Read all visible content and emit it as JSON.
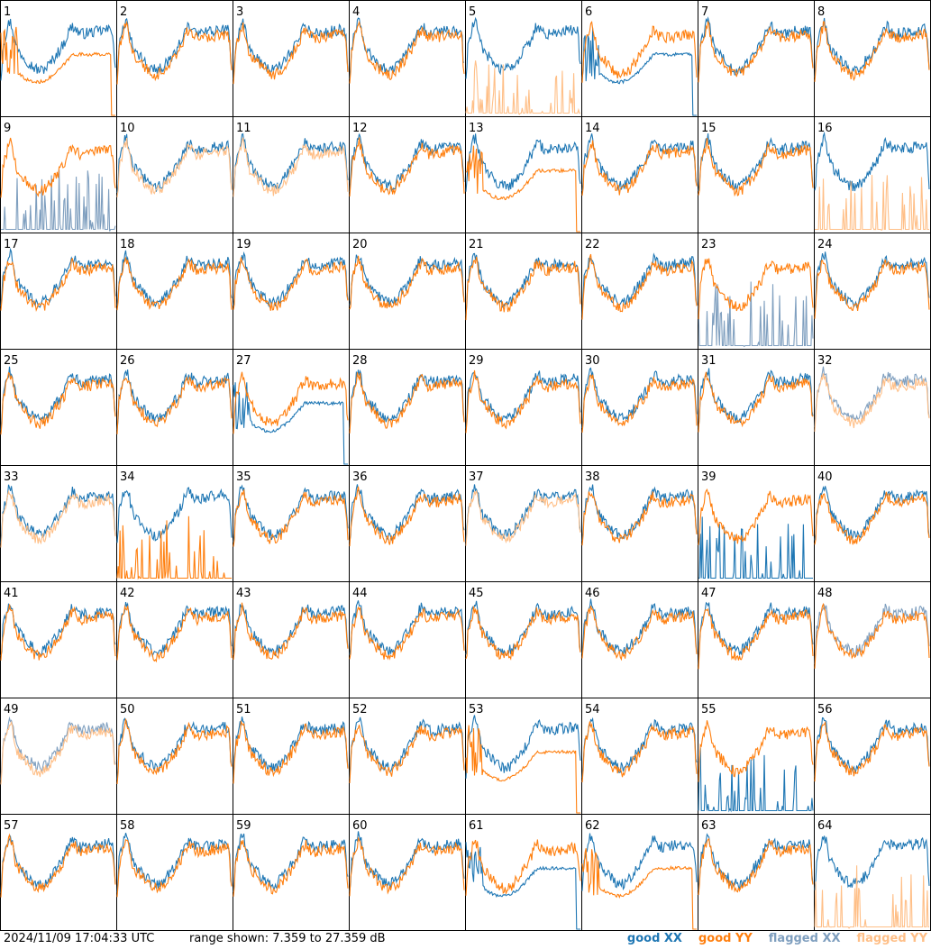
{
  "chart_data": {
    "type": "line",
    "layout": "8x8 small multiples",
    "panels": [
      "1",
      "2",
      "3",
      "4",
      "5",
      "6",
      "7",
      "8",
      "9",
      "10",
      "11",
      "12",
      "13",
      "14",
      "15",
      "16",
      "17",
      "18",
      "19",
      "20",
      "21",
      "22",
      "23",
      "24",
      "25",
      "26",
      "27",
      "28",
      "29",
      "30",
      "31",
      "32",
      "33",
      "34",
      "35",
      "36",
      "37",
      "38",
      "39",
      "40",
      "41",
      "42",
      "43",
      "44",
      "45",
      "46",
      "47",
      "48",
      "49",
      "50",
      "51",
      "52",
      "53",
      "54",
      "55",
      "56",
      "57",
      "58",
      "59",
      "60",
      "61",
      "62",
      "63",
      "64"
    ],
    "ylim": [
      7.359,
      27.359
    ],
    "yunit": "dB",
    "series": [
      {
        "name": "good XX",
        "color": "#1f77b4"
      },
      {
        "name": "good YY",
        "color": "#ff7f0e"
      },
      {
        "name": "flagged XX",
        "color": "#7f9fbf"
      },
      {
        "name": "flagged YY",
        "color": "#ffbf87"
      }
    ],
    "grid": false
  },
  "footer": {
    "timestamp": "2024/11/09 17:04:33 UTC",
    "range_text": "range shown: 7.359 to 27.359 dB"
  }
}
